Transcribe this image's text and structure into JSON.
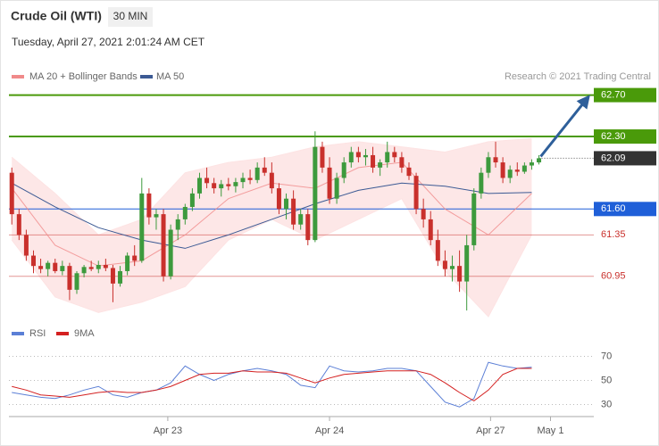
{
  "header": {
    "title": "Crude Oil (WTI)",
    "interval": "30 MIN",
    "datetime": "Tuesday, April 27, 2021 2:01:24 AM CET",
    "credit": "Research © 2021 Trading Central"
  },
  "chart_data": [
    {
      "type": "candlestick",
      "candles": [
        [
          61.95,
          62.0,
          61.45,
          61.55
        ],
        [
          61.55,
          61.6,
          61.3,
          61.35
        ],
        [
          61.35,
          61.4,
          61.1,
          61.15
        ],
        [
          61.15,
          61.2,
          60.98,
          61.05
        ],
        [
          61.05,
          61.12,
          60.98,
          61.02
        ],
        [
          61.02,
          61.1,
          60.95,
          61.08
        ],
        [
          61.08,
          61.12,
          60.98,
          61.0
        ],
        [
          61.0,
          61.1,
          60.96,
          61.05
        ],
        [
          61.05,
          61.08,
          60.72,
          60.82
        ],
        [
          60.82,
          61.0,
          60.78,
          60.98
        ],
        [
          60.98,
          61.06,
          60.94,
          61.04
        ],
        [
          61.04,
          61.1,
          61.0,
          61.02
        ],
        [
          61.02,
          61.1,
          60.98,
          61.06
        ],
        [
          61.06,
          61.12,
          61.0,
          61.03
        ],
        [
          61.03,
          61.06,
          60.7,
          60.88
        ],
        [
          60.88,
          61.05,
          60.85,
          61.0
        ],
        [
          61.0,
          61.18,
          60.96,
          61.15
        ],
        [
          61.15,
          61.25,
          61.05,
          61.1
        ],
        [
          61.1,
          61.9,
          61.08,
          61.75
        ],
        [
          61.75,
          61.8,
          61.45,
          61.52
        ],
        [
          61.52,
          61.6,
          61.4,
          61.55
        ],
        [
          61.55,
          61.6,
          60.9,
          60.95
        ],
        [
          60.95,
          61.45,
          60.92,
          61.4
        ],
        [
          61.4,
          61.55,
          61.3,
          61.5
        ],
        [
          61.5,
          61.65,
          61.45,
          61.62
        ],
        [
          61.62,
          61.8,
          61.58,
          61.75
        ],
        [
          61.75,
          61.95,
          61.7,
          61.9
        ],
        [
          61.9,
          62.0,
          61.8,
          61.85
        ],
        [
          61.85,
          61.9,
          61.75,
          61.8
        ],
        [
          61.8,
          61.88,
          61.72,
          61.84
        ],
        [
          61.84,
          61.9,
          61.78,
          61.82
        ],
        [
          61.82,
          61.9,
          61.76,
          61.86
        ],
        [
          61.86,
          61.95,
          61.8,
          61.9
        ],
        [
          61.9,
          61.98,
          61.84,
          61.88
        ],
        [
          61.88,
          62.05,
          61.85,
          62.0
        ],
        [
          62.0,
          62.1,
          61.92,
          61.95
        ],
        [
          61.95,
          62.05,
          61.75,
          61.8
        ],
        [
          61.8,
          61.85,
          61.55,
          61.6
        ],
        [
          61.6,
          61.75,
          61.5,
          61.7
        ],
        [
          61.7,
          61.78,
          61.4,
          61.45
        ],
        [
          61.45,
          61.6,
          61.4,
          61.55
        ],
        [
          61.55,
          61.6,
          61.25,
          61.3
        ],
        [
          61.3,
          62.35,
          61.28,
          62.2
        ],
        [
          62.2,
          62.25,
          61.95,
          62.0
        ],
        [
          62.0,
          62.1,
          61.65,
          61.7
        ],
        [
          61.7,
          61.95,
          61.65,
          61.9
        ],
        [
          61.9,
          62.1,
          61.85,
          62.05
        ],
        [
          62.05,
          62.2,
          62.0,
          62.15
        ],
        [
          62.15,
          62.2,
          62.05,
          62.1
        ],
        [
          62.1,
          62.18,
          62.02,
          62.12
        ],
        [
          62.12,
          62.2,
          61.95,
          62.0
        ],
        [
          62.0,
          62.08,
          61.92,
          62.05
        ],
        [
          62.05,
          62.25,
          62.0,
          62.15
        ],
        [
          62.15,
          62.2,
          62.05,
          62.1
        ],
        [
          62.1,
          62.15,
          61.95,
          62.0
        ],
        [
          62.0,
          62.05,
          61.88,
          61.92
        ],
        [
          61.92,
          61.95,
          61.55,
          61.6
        ],
        [
          61.6,
          61.7,
          61.42,
          61.5
        ],
        [
          61.5,
          61.58,
          61.25,
          61.3
        ],
        [
          61.3,
          61.4,
          61.05,
          61.1
        ],
        [
          61.1,
          61.2,
          60.95,
          61.02
        ],
        [
          61.02,
          61.15,
          60.9,
          61.05
        ],
        [
          61.05,
          61.2,
          60.8,
          60.9
        ],
        [
          60.9,
          61.35,
          60.62,
          61.25
        ],
        [
          61.25,
          61.8,
          61.2,
          61.75
        ],
        [
          61.75,
          62.0,
          61.7,
          61.95
        ],
        [
          61.95,
          62.15,
          61.9,
          62.1
        ],
        [
          62.1,
          62.25,
          62.0,
          62.05
        ],
        [
          62.05,
          62.1,
          61.85,
          61.9
        ],
        [
          61.9,
          62.02,
          61.85,
          61.98
        ],
        [
          61.98,
          62.05,
          61.92,
          61.96
        ],
        [
          61.96,
          62.05,
          61.94,
          62.02
        ],
        [
          62.02,
          62.08,
          61.98,
          62.05
        ],
        [
          62.05,
          62.12,
          62.03,
          62.09
        ]
      ],
      "candle_colors": {
        "up": "#3d9a3d",
        "down": "#c9302c"
      },
      "ylim": [
        60.5,
        62.8
      ],
      "xlim": [
        -0.4,
        80.6
      ],
      "x": [
        0,
        6,
        12,
        18,
        24,
        30,
        36,
        42,
        48,
        54,
        60,
        66,
        72
      ],
      "series": [
        {
          "name": "MA 20 + Bollinger Bands",
          "color": "#f08a8a",
          "values": [
            61.8,
            61.25,
            61.05,
            61.1,
            61.35,
            61.7,
            61.85,
            61.8,
            62.0,
            62.05,
            61.6,
            61.35,
            61.75
          ],
          "band_upper": [
            62.1,
            61.75,
            61.35,
            61.5,
            61.95,
            62.05,
            62.1,
            62.2,
            62.25,
            62.2,
            62.15,
            62.25,
            62.28
          ],
          "band_lower": [
            61.3,
            60.75,
            60.6,
            60.7,
            60.85,
            61.3,
            61.5,
            61.3,
            61.5,
            61.7,
            61.0,
            60.56,
            61.35
          ],
          "band_color": "#fde3e3"
        },
        {
          "name": "MA 50",
          "color": "#3c5a94",
          "values": [
            61.85,
            61.62,
            61.42,
            61.3,
            61.22,
            61.35,
            61.5,
            61.65,
            61.78,
            61.85,
            61.82,
            61.75,
            61.76
          ]
        }
      ],
      "levels": [
        {
          "value": 62.7,
          "label": "62.70",
          "color": "#4a9a0a",
          "style": "badge"
        },
        {
          "value": 62.3,
          "label": "62.30",
          "color": "#4a9a0a",
          "style": "badge"
        },
        {
          "value": 62.09,
          "label": "62.09",
          "color": "#333333",
          "style": "badge"
        },
        {
          "value": 61.6,
          "label": "61.60",
          "color": "#1f5fd8",
          "style": "badge"
        },
        {
          "value": 61.35,
          "label": "61.35",
          "color": "#c9302c",
          "style": "text"
        },
        {
          "value": 60.95,
          "label": "60.95",
          "color": "#c9302c",
          "style": "text"
        }
      ]
    },
    {
      "type": "line",
      "x": [
        0,
        2,
        4,
        6,
        8,
        10,
        12,
        14,
        16,
        18,
        20,
        22,
        24,
        26,
        28,
        30,
        32,
        34,
        36,
        38,
        40,
        42,
        44,
        46,
        48,
        50,
        52,
        54,
        56,
        58,
        60,
        62,
        64,
        66,
        68,
        70,
        72
      ],
      "series": [
        {
          "name": "RSI",
          "color": "#5b7fd6",
          "values": [
            40,
            38,
            36,
            35,
            38,
            42,
            45,
            38,
            36,
            40,
            42,
            48,
            62,
            55,
            50,
            55,
            58,
            60,
            58,
            55,
            46,
            44,
            62,
            58,
            57,
            58,
            60,
            60,
            58,
            45,
            32,
            28,
            35,
            65,
            62,
            60,
            61
          ]
        },
        {
          "name": "9MA",
          "color": "#d42020",
          "values": [
            45,
            42,
            38,
            37,
            36,
            38,
            40,
            41,
            40,
            40,
            42,
            45,
            50,
            55,
            56,
            56,
            58,
            57,
            57,
            56,
            52,
            48,
            52,
            55,
            56,
            57,
            58,
            58,
            58,
            55,
            48,
            40,
            33,
            42,
            55,
            60,
            60
          ]
        }
      ],
      "ylim": [
        20,
        80
      ],
      "yticks": [
        30,
        50,
        70
      ],
      "xlim": [
        -0.4,
        80.6
      ],
      "xticks": [
        {
          "value": 21.6,
          "label": "Apr 23"
        },
        {
          "value": 44,
          "label": "Apr 24"
        },
        {
          "value": 66.3,
          "label": "Apr 27"
        },
        {
          "value": 74.6,
          "label": "May 1"
        }
      ]
    }
  ]
}
